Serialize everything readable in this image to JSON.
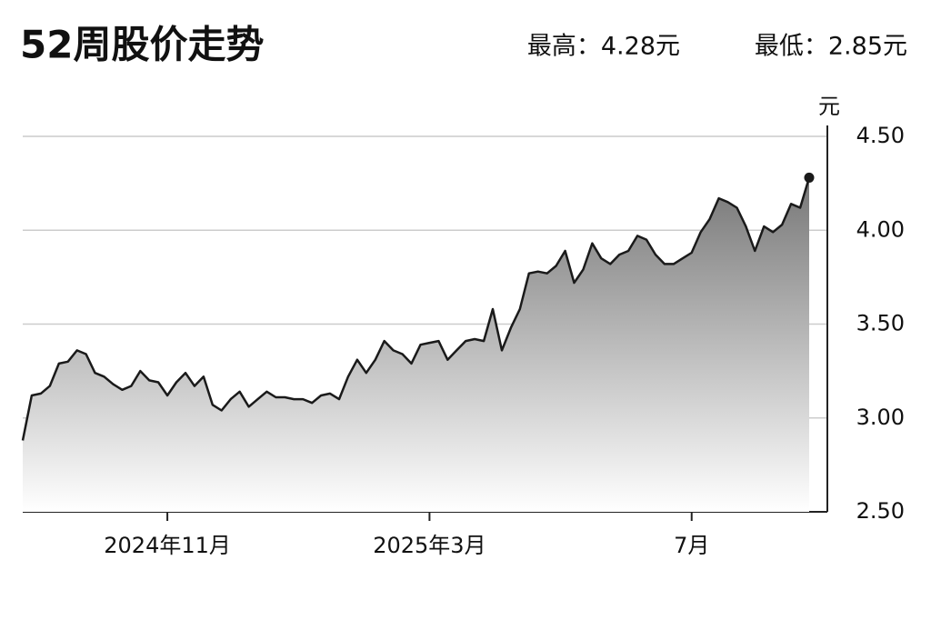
{
  "chart_data": {
    "type": "line",
    "title": "52周股价走势",
    "annotations": [
      "最高：4.28元",
      "最低：2.85元"
    ],
    "y_label": "元",
    "categories": [
      null,
      null,
      null,
      null,
      null,
      null,
      null,
      null,
      null,
      null,
      null,
      null,
      null,
      null,
      null,
      null,
      "2024年11月",
      null,
      null,
      null,
      null,
      null,
      null,
      null,
      null,
      null,
      null,
      null,
      null,
      null,
      null,
      null,
      null,
      null,
      null,
      null,
      null,
      null,
      null,
      null,
      null,
      null,
      null,
      null,
      null,
      "2025年3月",
      null,
      null,
      null,
      null,
      null,
      null,
      null,
      null,
      null,
      null,
      null,
      null,
      null,
      null,
      null,
      null,
      null,
      null,
      null,
      null,
      null,
      null,
      null,
      null,
      null,
      null,
      null,
      null,
      "7月",
      null,
      null,
      null,
      null,
      null,
      null,
      null,
      null,
      null,
      null,
      null,
      null,
      null
    ],
    "values": [
      2.88,
      3.12,
      3.13,
      3.17,
      3.29,
      3.3,
      3.36,
      3.34,
      3.24,
      3.22,
      3.18,
      3.15,
      3.17,
      3.25,
      3.2,
      3.19,
      3.12,
      3.19,
      3.24,
      3.17,
      3.22,
      3.07,
      3.04,
      3.1,
      3.14,
      3.06,
      3.1,
      3.14,
      3.11,
      3.11,
      3.1,
      3.1,
      3.08,
      3.12,
      3.13,
      3.1,
      3.22,
      3.31,
      3.24,
      3.31,
      3.41,
      3.36,
      3.34,
      3.29,
      3.39,
      3.4,
      3.41,
      3.31,
      3.36,
      3.41,
      3.42,
      3.41,
      3.58,
      3.36,
      3.48,
      3.58,
      3.77,
      3.78,
      3.77,
      3.81,
      3.89,
      3.72,
      3.79,
      3.93,
      3.85,
      3.82,
      3.87,
      3.89,
      3.97,
      3.95,
      3.87,
      3.82,
      3.82,
      3.85,
      3.88,
      3.99,
      4.06,
      4.17,
      4.15,
      4.12,
      4.02,
      3.89,
      4.02,
      3.99,
      4.03,
      4.14,
      4.12,
      4.28
    ],
    "color": "#1a1a1a",
    "ylim": [
      2.5,
      4.5
    ],
    "yticks": [
      {
        "value": 2.5,
        "label": "2.50"
      },
      {
        "value": 3,
        "label": "3.00"
      },
      {
        "value": 3.5,
        "label": "3.50"
      },
      {
        "value": 4,
        "label": "4.00"
      },
      {
        "value": 4.5,
        "label": "4.50"
      }
    ],
    "grid": true
  }
}
